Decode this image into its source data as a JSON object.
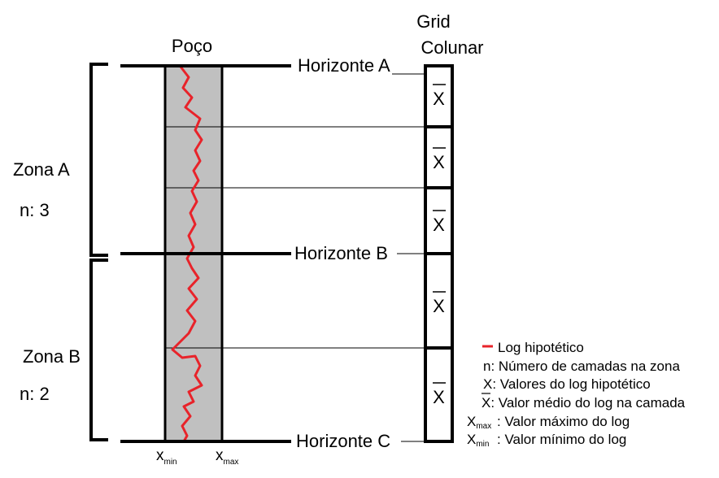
{
  "title_poco": "Poço",
  "grid_title_line1": "Grid",
  "grid_title_line2": "Colunar",
  "horizons": {
    "a": "Horizonte A",
    "b": "Horizonte B",
    "c": "Horizonte C"
  },
  "zones": {
    "a_label": "Zona A",
    "a_n": "n: 3",
    "b_label": "Zona B",
    "b_n": "n: 2"
  },
  "cell_symbol": "X",
  "well_axis": {
    "xmin_base": "x",
    "xmin_sub": "min",
    "xmax_base": "x",
    "xmax_sub": "max"
  },
  "legend": {
    "log": "Log hipotético",
    "n": "n: Número de camadas na zona",
    "x": "X: Valores do log hipotético",
    "xbar": "X: Valor médio do log na camada",
    "xmax": ": Valor máximo do log",
    "xmin": ": Valor mínimo do log",
    "xmax_base": "X",
    "xmax_sub": "max",
    "xmin_base": "X",
    "xmin_sub": "min"
  },
  "colors": {
    "log": "#e8232a",
    "well_fill": "#c0c0c0"
  }
}
